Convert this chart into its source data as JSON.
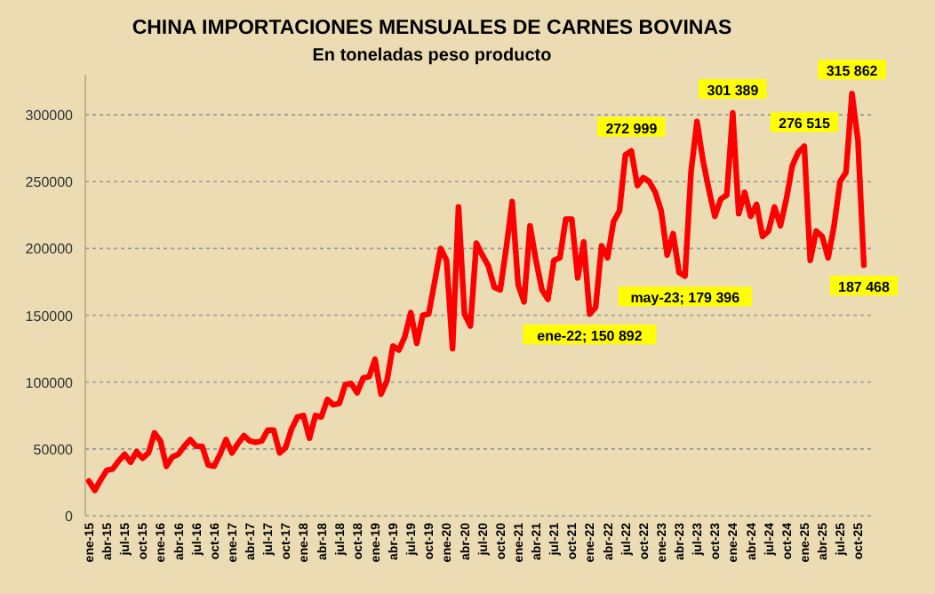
{
  "chart_data": {
    "type": "line",
    "title": "CHINA IMPORTACIONES MENSUALES DE CARNES BOVINAS",
    "subtitle": "En toneladas peso producto",
    "categories": [
      "ene-15",
      null,
      null,
      "abr-15",
      null,
      null,
      "jul-15",
      null,
      null,
      "oct-15",
      null,
      null,
      "ene-16",
      null,
      null,
      "abr-16",
      null,
      null,
      "jul-16",
      null,
      null,
      "oct-16",
      null,
      null,
      "ene-17",
      null,
      null,
      "abr-17",
      null,
      null,
      "jul-17",
      null,
      null,
      "oct-17",
      null,
      null,
      "ene-18",
      null,
      null,
      "abr-18",
      null,
      null,
      "jul-18",
      null,
      null,
      "oct-18",
      null,
      null,
      "ene-19",
      null,
      null,
      "abr-19",
      null,
      null,
      "jul-19",
      null,
      null,
      "oct-19",
      null,
      null,
      "ene-20",
      null,
      null,
      "abr-20",
      null,
      null,
      "jul-20",
      null,
      null,
      "oct-20",
      null,
      null,
      "ene-21",
      null,
      null,
      "abr-21",
      null,
      null,
      "jul-21",
      null,
      null,
      "oct-21",
      null,
      null,
      "ene-22",
      null,
      null,
      "abr-22",
      null,
      null,
      "jul-22",
      null,
      null,
      "oct-22",
      null,
      null,
      "ene-23",
      null,
      null,
      "abr-23",
      null,
      null,
      "jul-23",
      null,
      null,
      "oct-23",
      null,
      null,
      "ene-24",
      null,
      null,
      "abr-24",
      null,
      null,
      "jul-24",
      null,
      null,
      "oct-24",
      null,
      null,
      "ene-25",
      null,
      null,
      "abr-25",
      null,
      null,
      "jul-25",
      null,
      null,
      "oct-25",
      null
    ],
    "series": [
      {
        "color": "#ff0000",
        "values": [
          26000,
          19000,
          27000,
          34000,
          35000,
          41000,
          46000,
          40000,
          48000,
          43000,
          47000,
          62000,
          56000,
          37000,
          44000,
          46000,
          52000,
          57000,
          52000,
          52000,
          38000,
          37000,
          46000,
          57000,
          47000,
          54000,
          60000,
          56000,
          55000,
          56000,
          64000,
          64000,
          47000,
          51000,
          65000,
          74000,
          75000,
          58000,
          75000,
          74000,
          87000,
          83000,
          84000,
          98000,
          99000,
          92000,
          103000,
          104000,
          117000,
          91000,
          101000,
          127000,
          124000,
          134000,
          152000,
          129000,
          150000,
          151000,
          175000,
          200000,
          191000,
          125000,
          231000,
          151000,
          142000,
          204000,
          195000,
          187000,
          171000,
          169000,
          200000,
          235000,
          173000,
          160000,
          217000,
          191000,
          169000,
          162000,
          191000,
          193000,
          222000,
          222000,
          178000,
          205000,
          150892,
          156000,
          202000,
          193000,
          220000,
          228000,
          270000,
          272999,
          247000,
          253000,
          250000,
          242000,
          228000,
          195000,
          211000,
          182000,
          179396,
          257000,
          295000,
          266000,
          244000,
          224000,
          237000,
          240000,
          301389,
          226000,
          242000,
          224000,
          233000,
          209000,
          213000,
          231000,
          217000,
          237000,
          262000,
          272000,
          276515,
          191000,
          213000,
          209000,
          193000,
          217000,
          250000,
          257000,
          315862,
          281000,
          187468
        ],
        "value_labels": [
          null,
          null,
          null,
          null,
          null,
          null,
          null,
          null,
          null,
          null,
          null,
          null,
          null,
          null,
          null,
          null,
          null,
          null,
          null,
          null,
          null,
          null,
          null,
          null,
          null,
          null,
          null,
          null,
          null,
          null,
          null,
          null,
          null,
          null,
          null,
          null,
          null,
          null,
          null,
          null,
          null,
          null,
          null,
          null,
          null,
          null,
          null,
          null,
          null,
          null,
          null,
          null,
          null,
          null,
          null,
          null,
          null,
          null,
          null,
          null,
          null,
          null,
          null,
          null,
          null,
          null,
          null,
          null,
          null,
          null,
          null,
          null,
          null,
          null,
          null,
          null,
          null,
          null,
          null,
          null,
          null,
          null,
          null,
          null,
          "ene-22; 150 892",
          null,
          null,
          null,
          null,
          null,
          null,
          "272 999",
          null,
          null,
          null,
          null,
          null,
          null,
          null,
          null,
          "may-23; 179 396",
          null,
          null,
          null,
          null,
          null,
          null,
          null,
          "301 389",
          null,
          null,
          null,
          null,
          null,
          null,
          null,
          null,
          null,
          null,
          null,
          "276 515",
          null,
          null,
          null,
          null,
          null,
          null,
          null,
          "315 862",
          null,
          "187 468"
        ]
      }
    ],
    "ylim": [
      0,
      330000
    ],
    "yticks": [
      0,
      50000,
      100000,
      150000,
      200000,
      250000,
      300000
    ],
    "grid": "y"
  }
}
